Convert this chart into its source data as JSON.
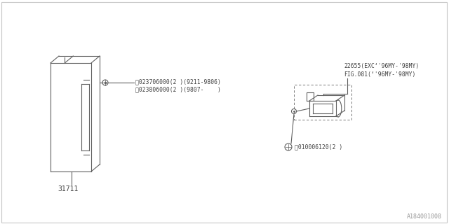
{
  "bg_color": "#ffffff",
  "border_color": "#c8c8c8",
  "line_color": "#606060",
  "text_color": "#404040",
  "figsize": [
    6.4,
    3.2
  ],
  "dpi": 100,
  "part_label_31711": "31711",
  "part_label_22655_line1": "22655(EXC‘'96MY-'98MY)",
  "part_label_22655_line2": "FIG.081(‘'96MY-'98MY)",
  "bolt_label_N1_line1": "ⓝ023706000(2 )(9211-9806)",
  "bolt_label_N1_line2": "ⓝ023806000(2 )(9807-    )",
  "bolt_label_B1": "Ⓑ010006120(2 )",
  "watermark": "A184001008"
}
